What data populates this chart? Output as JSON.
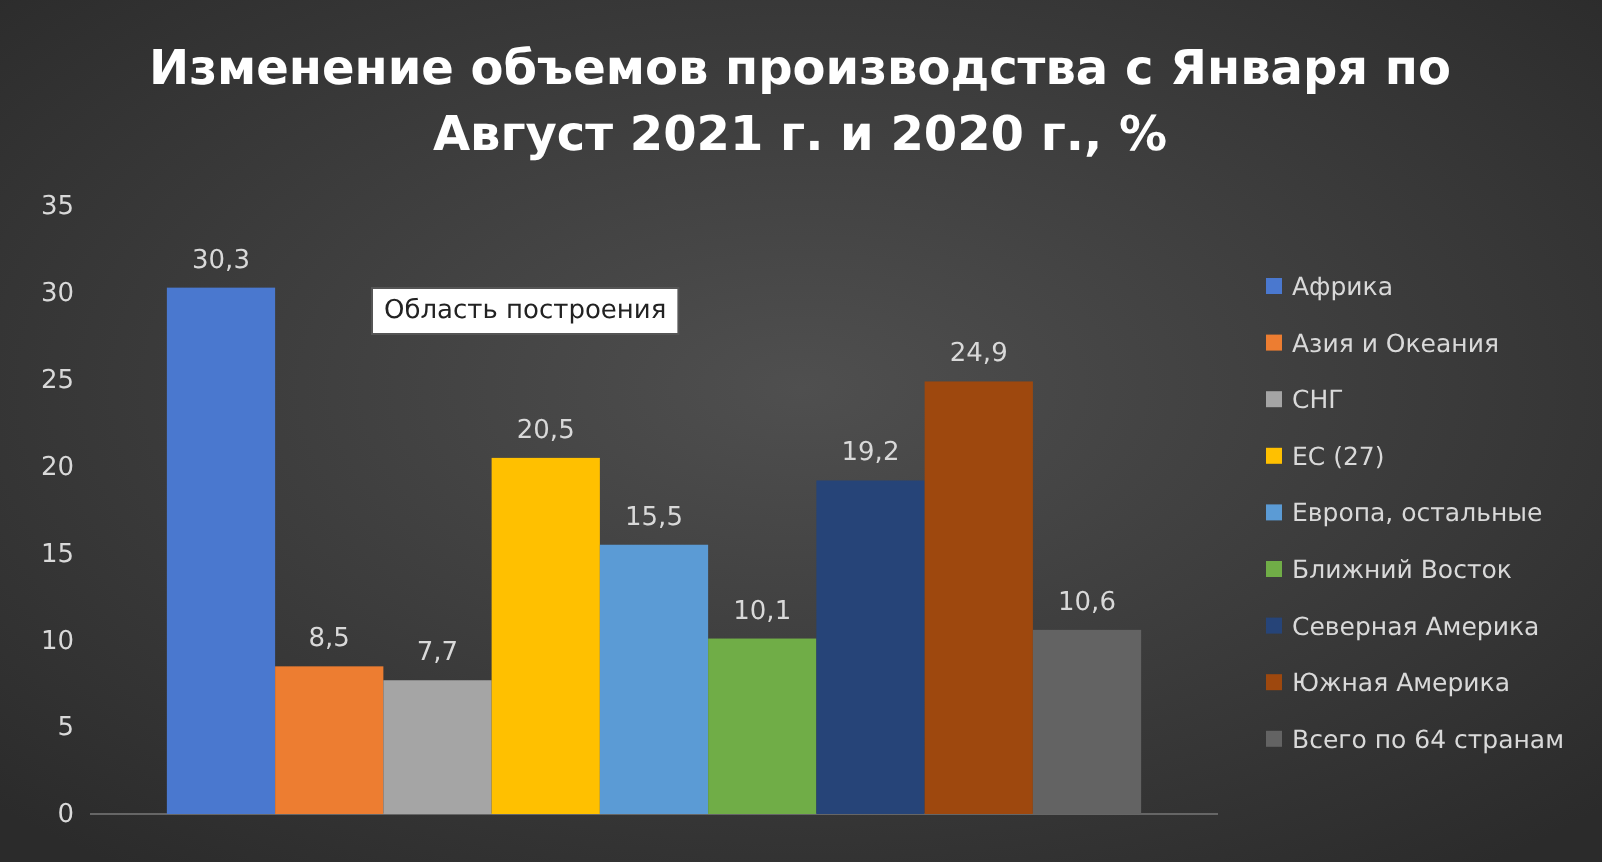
{
  "chart_data": {
    "type": "bar",
    "title": "Изменение объемов производства с Января по Август 2021 г. и 2020 г., %",
    "categories": [
      null
    ],
    "series": [
      {
        "name": "Африка",
        "color": "#4a78cf",
        "values": [
          30.3
        ],
        "value_labels": [
          "30,3"
        ]
      },
      {
        "name": "Азия и Океания",
        "color": "#ed7d31",
        "values": [
          8.5
        ],
        "value_labels": [
          "8,5"
        ]
      },
      {
        "name": "СНГ",
        "color": "#a5a5a5",
        "values": [
          7.7
        ],
        "value_labels": [
          "7,7"
        ]
      },
      {
        "name": "ЕС (27)",
        "color": "#ffc000",
        "values": [
          20.5
        ],
        "value_labels": [
          "20,5"
        ]
      },
      {
        "name": "Европа, остальные",
        "color": "#5b9bd5",
        "values": [
          15.5
        ],
        "value_labels": [
          "15,5"
        ]
      },
      {
        "name": "Ближний Восток",
        "color": "#70ad47",
        "values": [
          10.1
        ],
        "value_labels": [
          "10,1"
        ]
      },
      {
        "name": "Северная Америка",
        "color": "#264478",
        "values": [
          19.2
        ],
        "value_labels": [
          "19,2"
        ]
      },
      {
        "name": "Южная Америка",
        "color": "#9e480e",
        "values": [
          24.9
        ],
        "value_labels": [
          "24,9"
        ]
      },
      {
        "name": "Всего по 64 странам",
        "color": "#636363",
        "values": [
          10.6
        ],
        "value_labels": [
          "10,6"
        ]
      }
    ],
    "ylim": [
      0,
      35
    ],
    "yticks": [
      0,
      5,
      10,
      15,
      20,
      25,
      30,
      35
    ],
    "grid": false,
    "legend": "right",
    "annotations": [
      "Область построения"
    ]
  }
}
